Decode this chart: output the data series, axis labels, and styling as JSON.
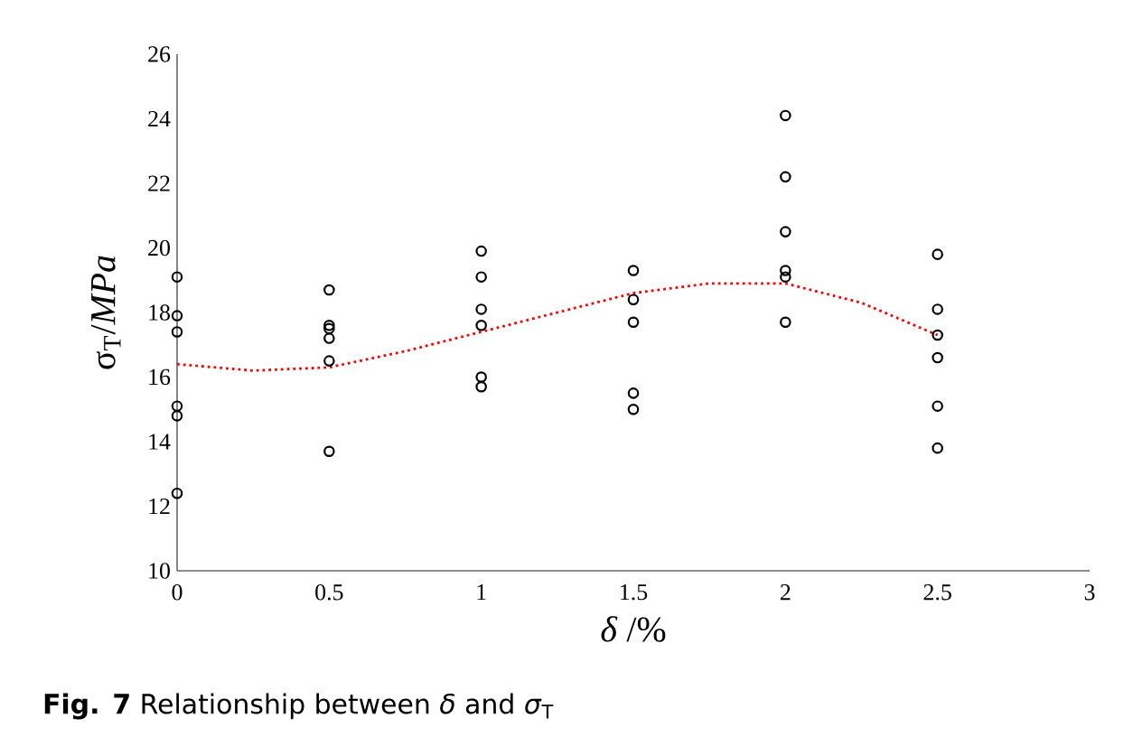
{
  "chart_data": {
    "type": "scatter",
    "xlabel": "*δ* /%",
    "ylabel": "σ$_{T}$/*MPa*",
    "annotations": [
      "**Fig. 7** Relationship between *δ* and *σ*$_{T}$"
    ],
    "xlim": [
      0,
      3
    ],
    "xticks": [
      0,
      0.5,
      1,
      1.5,
      2,
      2.5,
      3
    ],
    "ylim": [
      10,
      26
    ],
    "yticks": [
      10,
      12,
      14,
      16,
      18,
      20,
      22,
      24,
      26
    ],
    "grid": false,
    "marker": "circle",
    "series": [
      {
        "color": "#000000",
        "x": [
          0,
          0,
          0,
          0,
          0,
          0,
          0.5,
          0.5,
          0.5,
          0.5,
          0.5,
          0.5,
          1,
          1,
          1,
          1,
          1,
          1,
          1.5,
          1.5,
          1.5,
          1.5,
          1.5,
          2,
          2,
          2,
          2,
          2,
          2,
          2.5,
          2.5,
          2.5,
          2.5,
          2.5,
          2.5
        ],
        "values": [
          19.1,
          17.9,
          17.4,
          15.1,
          14.8,
          12.4,
          18.7,
          17.6,
          17.5,
          17.2,
          16.5,
          13.7,
          19.9,
          19.1,
          18.1,
          17.6,
          16.0,
          15.7,
          19.3,
          18.4,
          17.7,
          15.5,
          15.0,
          24.1,
          22.2,
          20.5,
          19.3,
          19.1,
          17.7,
          19.8,
          18.1,
          17.3,
          16.6,
          15.1,
          13.8
        ]
      },
      {
        "type": "line",
        "color": "#ff0000",
        "marker": "none",
        "line_style": "dotted",
        "x": [
          0,
          0.25,
          0.5,
          0.75,
          1,
          1.25,
          1.5,
          1.75,
          2,
          2.25,
          2.5
        ],
        "values": [
          16.4,
          16.2,
          16.3,
          16.8,
          17.4,
          18.0,
          18.6,
          18.9,
          18.9,
          18.3,
          17.3
        ]
      }
    ]
  }
}
